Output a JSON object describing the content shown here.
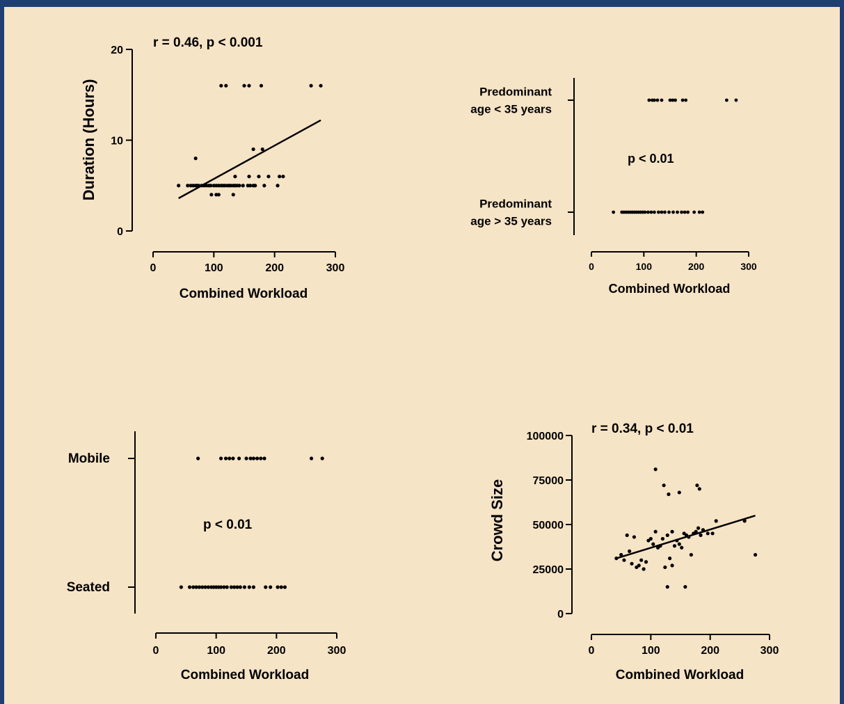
{
  "colors": {
    "background": "#F6E4C6",
    "border": "#1F3F73",
    "ink": "#000000"
  },
  "chart_data": [
    {
      "id": "duration",
      "type": "scatter",
      "title": "r = 0.46, p < 0.001",
      "xlabel": "Combined Workload",
      "ylabel": "Duration (Hours)",
      "xlim": [
        0,
        300
      ],
      "ylim": [
        0,
        20
      ],
      "xticks": [
        0,
        100,
        200,
        300
      ],
      "yticks": [
        0,
        10,
        20
      ],
      "x": [
        42,
        57,
        62,
        66,
        70,
        72,
        75,
        80,
        84,
        88,
        92,
        95,
        100,
        104,
        108,
        112,
        115,
        118,
        122,
        125,
        128,
        132,
        135,
        138,
        142,
        148,
        156,
        160,
        165,
        168,
        174,
        183,
        190,
        205,
        208,
        214,
        104,
        96,
        108,
        132,
        70,
        135,
        158,
        165,
        180,
        112,
        120,
        150,
        158,
        178,
        260,
        276
      ],
      "y": [
        5,
        5,
        5,
        5,
        5,
        5,
        5,
        5,
        5,
        5,
        5,
        5,
        5,
        5,
        5,
        5,
        5,
        5,
        5,
        5,
        5,
        5,
        5,
        5,
        5,
        5,
        5,
        5,
        5,
        5,
        6,
        5,
        6,
        5,
        6,
        6,
        4,
        4,
        4,
        4,
        8,
        6,
        6,
        9,
        9,
        16,
        16,
        16,
        16,
        16,
        16,
        16
      ],
      "fit": [
        [
          42,
          3.6
        ],
        [
          276,
          12.2
        ]
      ]
    },
    {
      "id": "age",
      "type": "scatter",
      "annotation": "p < 0.01",
      "xlabel": "Combined Workload",
      "xlim": [
        0,
        300
      ],
      "xticks": [
        0,
        100,
        200,
        300
      ],
      "categories": [
        "Predominant age > 35 years",
        "Predominant age < 35 years"
      ],
      "category_lines": [
        [
          "Predominant",
          "age > 35 years"
        ],
        [
          "Predominant",
          "age < 35 years"
        ]
      ],
      "x": [
        110,
        116,
        120,
        126,
        134,
        150,
        155,
        160,
        174,
        180,
        258,
        276,
        42,
        58,
        62,
        66,
        70,
        74,
        78,
        82,
        86,
        90,
        94,
        98,
        102,
        108,
        114,
        120,
        128,
        134,
        140,
        148,
        156,
        164,
        172,
        178,
        184,
        196,
        206,
        212
      ],
      "y": [
        1,
        1,
        1,
        1,
        1,
        1,
        1,
        1,
        1,
        1,
        1,
        1,
        0,
        0,
        0,
        0,
        0,
        0,
        0,
        0,
        0,
        0,
        0,
        0,
        0,
        0,
        0,
        0,
        0,
        0,
        0,
        0,
        0,
        0,
        0,
        0,
        0,
        0,
        0,
        0
      ]
    },
    {
      "id": "seating",
      "type": "scatter",
      "annotation": "p < 0.01",
      "xlabel": "Combined Workload",
      "xlim": [
        0,
        300
      ],
      "xticks": [
        0,
        100,
        200,
        300
      ],
      "categories": [
        "Seated",
        "Mobile"
      ],
      "category_lines": [
        [
          "Seated"
        ],
        [
          "Mobile"
        ]
      ],
      "x": [
        70,
        108,
        116,
        122,
        128,
        138,
        150,
        157,
        162,
        168,
        174,
        180,
        258,
        276,
        42,
        56,
        62,
        67,
        72,
        77,
        82,
        87,
        92,
        96,
        100,
        104,
        108,
        113,
        118,
        125,
        130,
        135,
        140,
        147,
        155,
        162,
        182,
        190,
        202,
        208,
        214
      ],
      "y": [
        1,
        1,
        1,
        1,
        1,
        1,
        1,
        1,
        1,
        1,
        1,
        1,
        1,
        1,
        0,
        0,
        0,
        0,
        0,
        0,
        0,
        0,
        0,
        0,
        0,
        0,
        0,
        0,
        0,
        0,
        0,
        0,
        0,
        0,
        0,
        0,
        0,
        0,
        0,
        0,
        0
      ]
    },
    {
      "id": "crowd",
      "type": "scatter",
      "title": "r = 0.34, p < 0.01",
      "xlabel": "Combined Workload",
      "ylabel": "Crowd Size",
      "xlim": [
        0,
        300
      ],
      "ylim": [
        0,
        100000
      ],
      "xticks": [
        0,
        100,
        200,
        300
      ],
      "yticks": [
        0,
        25000,
        50000,
        75000,
        100000
      ],
      "x": [
        42,
        50,
        55,
        60,
        64,
        68,
        72,
        76,
        80,
        84,
        88,
        92,
        96,
        100,
        104,
        108,
        112,
        116,
        120,
        124,
        128,
        132,
        136,
        140,
        144,
        148,
        152,
        156,
        160,
        164,
        168,
        172,
        176,
        180,
        184,
        188,
        196,
        204,
        210,
        258,
        276,
        108,
        122,
        130,
        148,
        178,
        182,
        128,
        158,
        136
      ],
      "y": [
        31000,
        33000,
        30000,
        44000,
        35000,
        28000,
        43000,
        26000,
        27000,
        30000,
        25000,
        29000,
        41000,
        42000,
        39000,
        46000,
        37000,
        38000,
        42000,
        26000,
        44000,
        31000,
        46000,
        38000,
        41000,
        39000,
        37000,
        45000,
        44000,
        43000,
        33000,
        45000,
        46000,
        48000,
        44000,
        47000,
        45000,
        45000,
        52000,
        52000,
        33000,
        81000,
        72000,
        67000,
        68000,
        72000,
        70000,
        15000,
        15000,
        27000
      ],
      "fit": [
        [
          42,
          31000
        ],
        [
          276,
          55000
        ]
      ]
    }
  ]
}
